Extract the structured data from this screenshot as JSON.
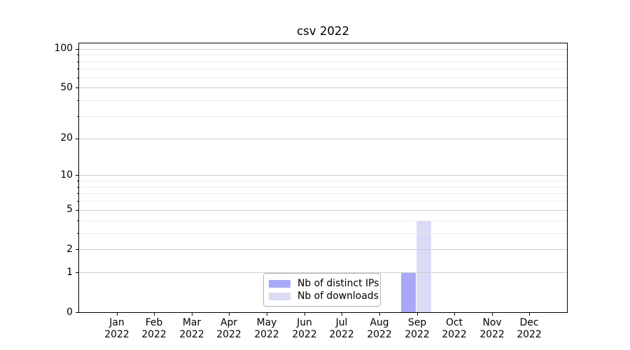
{
  "title": "csv 2022",
  "legend": {
    "items": [
      {
        "label": "Nb of distinct IPs",
        "color": "#a8a8f8"
      },
      {
        "label": "Nb of downloads",
        "color": "#dbdbf8"
      }
    ]
  },
  "colors": {
    "bar_distinct_ips": "#a8a8f8",
    "bar_downloads": "#dbdbf8",
    "grid_major": "#cdcdcd",
    "grid_minor": "#ebebeb",
    "spine": "#000000",
    "legend_border": "#b3b3b3"
  },
  "chart_data": {
    "type": "bar",
    "title": "csv 2022",
    "categories": [
      "Jan 2022",
      "Feb 2022",
      "Mar 2022",
      "Apr 2022",
      "May 2022",
      "Jun 2022",
      "Jul 2022",
      "Aug 2022",
      "Sep 2022",
      "Oct 2022",
      "Nov 2022",
      "Dec 2022"
    ],
    "series": [
      {
        "name": "Nb of distinct IPs",
        "color": "#a8a8f8",
        "values": [
          0,
          0,
          0,
          0,
          0,
          0,
          0,
          0,
          1,
          0,
          0,
          0
        ]
      },
      {
        "name": "Nb of downloads",
        "color": "#dbdbf8",
        "values": [
          0,
          0,
          0,
          0,
          0,
          0,
          0,
          0,
          4,
          0,
          0,
          0
        ]
      }
    ],
    "xlabel": "",
    "ylabel": "",
    "yscale": "log1p",
    "ylim": [
      0,
      110
    ],
    "yticks": [
      0,
      1,
      2,
      5,
      10,
      20,
      50,
      100
    ],
    "ytick_labels": [
      "0",
      "1",
      "2",
      "5",
      "10",
      "20",
      "50",
      "100"
    ],
    "minor_gridlines": [
      3,
      4,
      6,
      7,
      8,
      9,
      30,
      40,
      60,
      70,
      80,
      90
    ],
    "grid": "horizontal, major and minor, drawn over bars",
    "legend_position": "lower center"
  }
}
